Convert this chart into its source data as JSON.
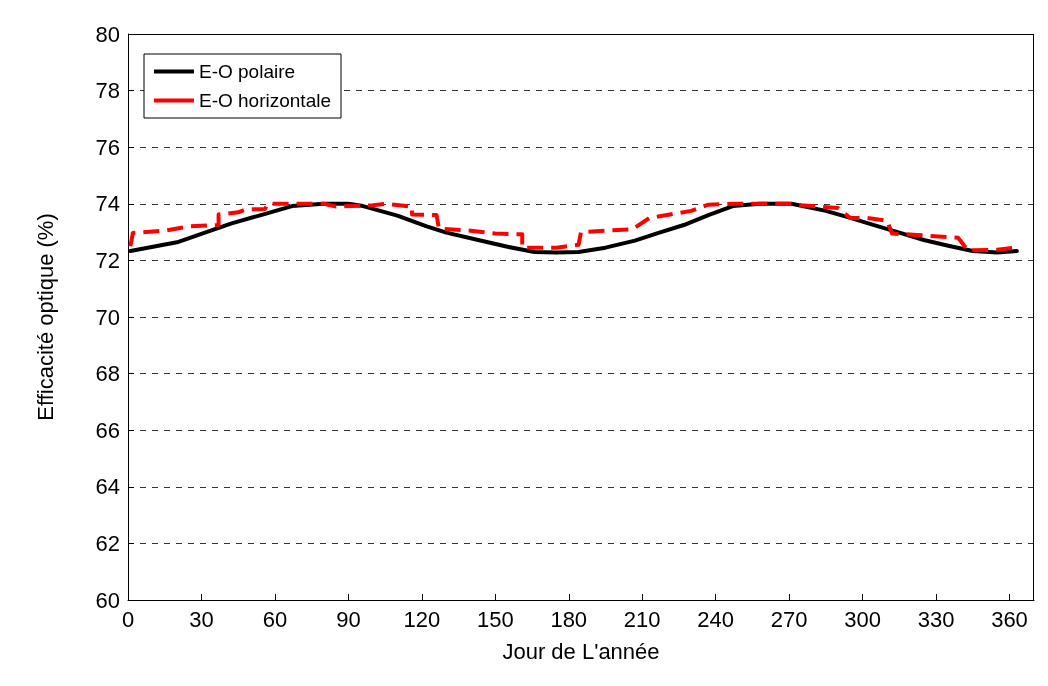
{
  "chart_data": {
    "type": "line",
    "xlabel": "Jour de L'année",
    "ylabel": "Efficacité optique (%)",
    "xlim": [
      0,
      370
    ],
    "xticks": [
      0,
      30,
      60,
      90,
      120,
      150,
      180,
      210,
      240,
      270,
      300,
      330,
      360
    ],
    "ylim": [
      60,
      80
    ],
    "yticks": [
      60,
      62,
      64,
      66,
      68,
      70,
      72,
      74,
      76,
      78,
      80
    ],
    "grid": "y",
    "legend": "top left",
    "marker": "none",
    "series": [
      {
        "name": "E-O polaire",
        "color": "#000000",
        "line_style": "solid",
        "x": [
          1,
          20,
          42,
          55,
          67,
          80,
          90,
          96,
          110,
          122,
          130,
          143,
          155,
          166,
          175,
          184,
          195,
          207,
          217,
          227,
          237,
          247,
          258,
          265,
          271,
          285,
          295,
          305,
          315,
          325,
          335,
          345,
          355,
          363
        ],
        "values": [
          72.33,
          72.64,
          73.3,
          73.62,
          73.92,
          74.0,
          74.0,
          73.92,
          73.58,
          73.2,
          72.98,
          72.72,
          72.48,
          72.3,
          72.28,
          72.3,
          72.45,
          72.7,
          72.98,
          73.25,
          73.6,
          73.92,
          74.0,
          74.0,
          74.0,
          73.75,
          73.5,
          73.24,
          72.98,
          72.72,
          72.52,
          72.33,
          72.28,
          72.33
        ]
      },
      {
        "name": "E-O horizontale",
        "color": "#ff0000",
        "line_style": "dashed",
        "x": [
          1,
          2,
          15,
          25,
          37,
          37,
          45,
          48,
          56,
          57,
          80,
          85,
          100,
          105,
          116,
          116,
          126,
          127,
          140,
          150,
          161,
          161,
          175,
          184,
          185,
          206,
          213,
          230,
          237,
          248,
          270,
          275,
          290,
          295,
          302,
          310,
          312,
          322,
          339,
          343,
          355,
          362
        ],
        "values": [
          72.5,
          72.97,
          73.05,
          73.2,
          73.25,
          73.62,
          73.7,
          73.8,
          73.82,
          74.0,
          74.0,
          73.9,
          73.95,
          74.0,
          73.9,
          73.62,
          73.6,
          73.12,
          73.05,
          72.95,
          72.92,
          72.45,
          72.45,
          72.55,
          73.0,
          73.1,
          73.5,
          73.75,
          73.97,
          74.0,
          74.0,
          73.95,
          73.85,
          73.5,
          73.5,
          73.4,
          72.95,
          72.9,
          72.8,
          72.35,
          72.38,
          72.45
        ]
      }
    ]
  }
}
